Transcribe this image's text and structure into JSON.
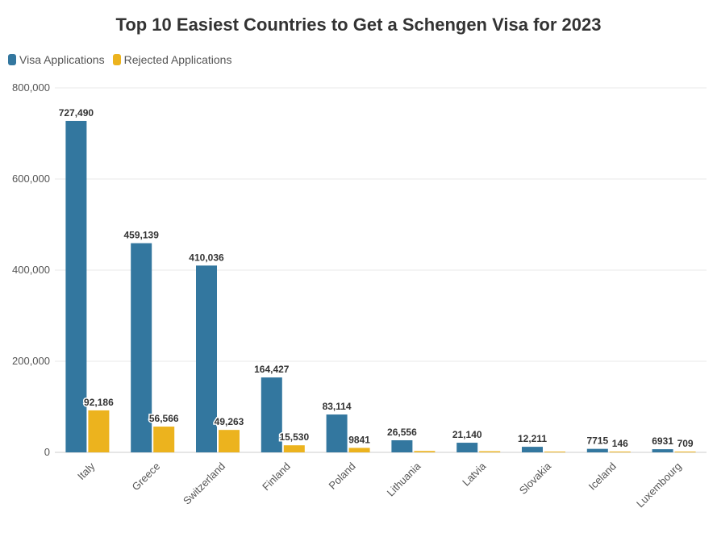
{
  "chart_data": {
    "type": "bar",
    "title": "Top 10 Easiest Countries to Get a Schengen Visa for 2023",
    "categories": [
      "Italy",
      "Greece",
      "Switzerland",
      "Finland",
      "Poland",
      "Lithuania",
      "Latvia",
      "Slovakia",
      "Iceland",
      "Luxembourg"
    ],
    "series": [
      {
        "name": "Visa Applications",
        "color": "#33779f",
        "values": [
          727490,
          459139,
          410036,
          164427,
          83114,
          26556,
          21140,
          12211,
          7715,
          6931
        ],
        "labels": [
          "727,490",
          "459,139",
          "410,036",
          "164,427",
          "83,114",
          "26,556",
          "21,140",
          "12,211",
          "7715",
          "6931"
        ]
      },
      {
        "name": "Rejected Applications",
        "color": "#ecb31e",
        "values": [
          92186,
          56566,
          49263,
          15530,
          9841,
          3000,
          2500,
          1500,
          146,
          709
        ],
        "labels": [
          "92,186",
          "56,566",
          "49,263",
          "15,530",
          "9841",
          "",
          "",
          "",
          "146",
          "709"
        ]
      }
    ],
    "yticks": [
      0,
      200000,
      400000,
      600000,
      800000
    ],
    "ytick_labels": [
      "0",
      "200,000",
      "400,000",
      "600,000",
      "800,000"
    ],
    "ylim": [
      0,
      800000
    ],
    "grid": true,
    "legend_position": "top-left"
  }
}
